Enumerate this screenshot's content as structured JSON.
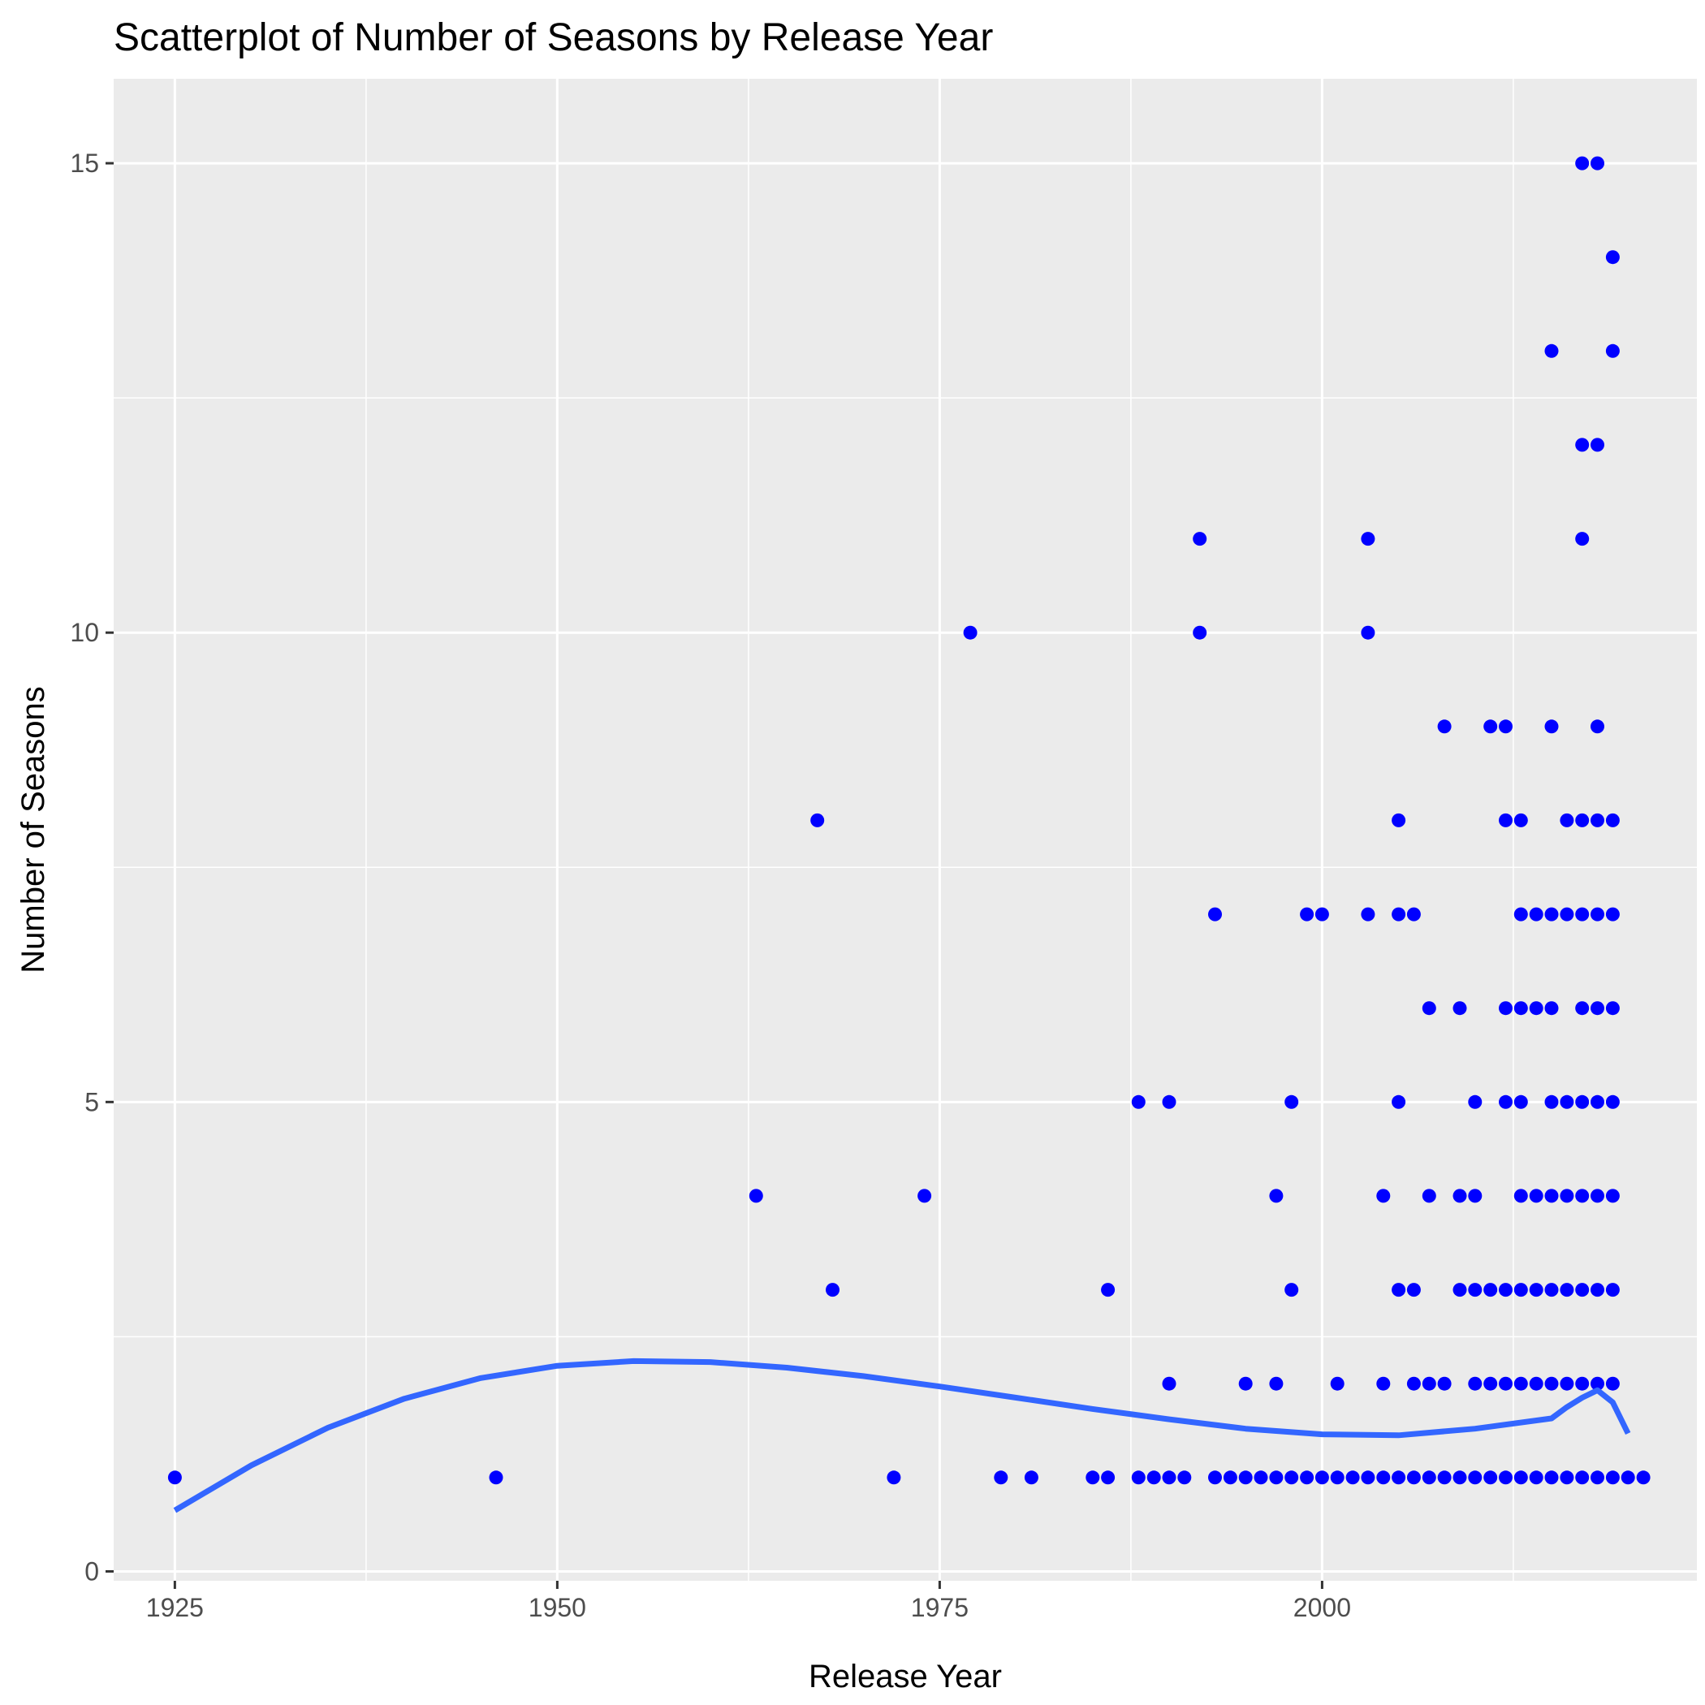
{
  "chart_data": {
    "type": "scatter",
    "title": "Scatterplot of Number of Seasons by Release Year",
    "xlabel": "Release Year",
    "ylabel": "Number of Seasons",
    "xlim": [
      1921,
      2024.5
    ],
    "ylim": [
      -0.1,
      15.9
    ],
    "x_ticks": [
      1925,
      1950,
      1975,
      2000
    ],
    "x_tick_labels": [
      "1925",
      "1950",
      "1975",
      "2000"
    ],
    "y_ticks": [
      0,
      5,
      10,
      15
    ],
    "y_tick_labels": [
      "0",
      "5",
      "10",
      "15"
    ],
    "grid": true,
    "legend": "none",
    "colors": {
      "points": "#0000ff",
      "trend": "#3366ff",
      "panel": "#ebebeb",
      "grid": "#ffffff"
    },
    "points": [
      {
        "x": 1925,
        "y": 1
      },
      {
        "x": 1946,
        "y": 1
      },
      {
        "x": 1963,
        "y": 4
      },
      {
        "x": 1967,
        "y": 8
      },
      {
        "x": 1968,
        "y": 3
      },
      {
        "x": 1972,
        "y": 1
      },
      {
        "x": 1974,
        "y": 4
      },
      {
        "x": 1977,
        "y": 10
      },
      {
        "x": 1979,
        "y": 1
      },
      {
        "x": 1981,
        "y": 1
      },
      {
        "x": 1985,
        "y": 1
      },
      {
        "x": 1986,
        "y": 1
      },
      {
        "x": 1986,
        "y": 3
      },
      {
        "x": 1988,
        "y": 1
      },
      {
        "x": 1988,
        "y": 5
      },
      {
        "x": 1989,
        "y": 1
      },
      {
        "x": 1990,
        "y": 1
      },
      {
        "x": 1990,
        "y": 2
      },
      {
        "x": 1990,
        "y": 5
      },
      {
        "x": 1991,
        "y": 1
      },
      {
        "x": 1992,
        "y": 10
      },
      {
        "x": 1992,
        "y": 11
      },
      {
        "x": 1993,
        "y": 1
      },
      {
        "x": 1993,
        "y": 7
      },
      {
        "x": 1994,
        "y": 1
      },
      {
        "x": 1995,
        "y": 1
      },
      {
        "x": 1995,
        "y": 2
      },
      {
        "x": 1996,
        "y": 1
      },
      {
        "x": 1997,
        "y": 1
      },
      {
        "x": 1997,
        "y": 2
      },
      {
        "x": 1997,
        "y": 4
      },
      {
        "x": 1998,
        "y": 1
      },
      {
        "x": 1998,
        "y": 3
      },
      {
        "x": 1998,
        "y": 5
      },
      {
        "x": 1999,
        "y": 1
      },
      {
        "x": 1999,
        "y": 7
      },
      {
        "x": 2000,
        "y": 1
      },
      {
        "x": 2000,
        "y": 7
      },
      {
        "x": 2001,
        "y": 1
      },
      {
        "x": 2001,
        "y": 2
      },
      {
        "x": 2002,
        "y": 1
      },
      {
        "x": 2003,
        "y": 1
      },
      {
        "x": 2003,
        "y": 7
      },
      {
        "x": 2003,
        "y": 10
      },
      {
        "x": 2003,
        "y": 11
      },
      {
        "x": 2004,
        "y": 1
      },
      {
        "x": 2004,
        "y": 2
      },
      {
        "x": 2004,
        "y": 4
      },
      {
        "x": 2005,
        "y": 1
      },
      {
        "x": 2005,
        "y": 3
      },
      {
        "x": 2005,
        "y": 5
      },
      {
        "x": 2005,
        "y": 7
      },
      {
        "x": 2005,
        "y": 8
      },
      {
        "x": 2006,
        "y": 1
      },
      {
        "x": 2006,
        "y": 2
      },
      {
        "x": 2006,
        "y": 3
      },
      {
        "x": 2006,
        "y": 7
      },
      {
        "x": 2007,
        "y": 1
      },
      {
        "x": 2007,
        "y": 2
      },
      {
        "x": 2007,
        "y": 4
      },
      {
        "x": 2007,
        "y": 6
      },
      {
        "x": 2008,
        "y": 1
      },
      {
        "x": 2008,
        "y": 2
      },
      {
        "x": 2008,
        "y": 9
      },
      {
        "x": 2009,
        "y": 1
      },
      {
        "x": 2009,
        "y": 3
      },
      {
        "x": 2009,
        "y": 4
      },
      {
        "x": 2009,
        "y": 6
      },
      {
        "x": 2010,
        "y": 1
      },
      {
        "x": 2010,
        "y": 2
      },
      {
        "x": 2010,
        "y": 3
      },
      {
        "x": 2010,
        "y": 4
      },
      {
        "x": 2010,
        "y": 5
      },
      {
        "x": 2011,
        "y": 1
      },
      {
        "x": 2011,
        "y": 2
      },
      {
        "x": 2011,
        "y": 3
      },
      {
        "x": 2011,
        "y": 9
      },
      {
        "x": 2012,
        "y": 1
      },
      {
        "x": 2012,
        "y": 2
      },
      {
        "x": 2012,
        "y": 3
      },
      {
        "x": 2012,
        "y": 5
      },
      {
        "x": 2012,
        "y": 6
      },
      {
        "x": 2012,
        "y": 8
      },
      {
        "x": 2012,
        "y": 9
      },
      {
        "x": 2013,
        "y": 1
      },
      {
        "x": 2013,
        "y": 2
      },
      {
        "x": 2013,
        "y": 3
      },
      {
        "x": 2013,
        "y": 4
      },
      {
        "x": 2013,
        "y": 5
      },
      {
        "x": 2013,
        "y": 6
      },
      {
        "x": 2013,
        "y": 7
      },
      {
        "x": 2013,
        "y": 8
      },
      {
        "x": 2014,
        "y": 1
      },
      {
        "x": 2014,
        "y": 2
      },
      {
        "x": 2014,
        "y": 3
      },
      {
        "x": 2014,
        "y": 4
      },
      {
        "x": 2014,
        "y": 6
      },
      {
        "x": 2014,
        "y": 7
      },
      {
        "x": 2015,
        "y": 1
      },
      {
        "x": 2015,
        "y": 2
      },
      {
        "x": 2015,
        "y": 3
      },
      {
        "x": 2015,
        "y": 4
      },
      {
        "x": 2015,
        "y": 5
      },
      {
        "x": 2015,
        "y": 6
      },
      {
        "x": 2015,
        "y": 7
      },
      {
        "x": 2015,
        "y": 9
      },
      {
        "x": 2015,
        "y": 13
      },
      {
        "x": 2016,
        "y": 1
      },
      {
        "x": 2016,
        "y": 2
      },
      {
        "x": 2016,
        "y": 3
      },
      {
        "x": 2016,
        "y": 4
      },
      {
        "x": 2016,
        "y": 5
      },
      {
        "x": 2016,
        "y": 7
      },
      {
        "x": 2016,
        "y": 8
      },
      {
        "x": 2017,
        "y": 1
      },
      {
        "x": 2017,
        "y": 2
      },
      {
        "x": 2017,
        "y": 3
      },
      {
        "x": 2017,
        "y": 4
      },
      {
        "x": 2017,
        "y": 5
      },
      {
        "x": 2017,
        "y": 6
      },
      {
        "x": 2017,
        "y": 7
      },
      {
        "x": 2017,
        "y": 8
      },
      {
        "x": 2017,
        "y": 11
      },
      {
        "x": 2017,
        "y": 12
      },
      {
        "x": 2017,
        "y": 15
      },
      {
        "x": 2018,
        "y": 1
      },
      {
        "x": 2018,
        "y": 2
      },
      {
        "x": 2018,
        "y": 3
      },
      {
        "x": 2018,
        "y": 4
      },
      {
        "x": 2018,
        "y": 5
      },
      {
        "x": 2018,
        "y": 6
      },
      {
        "x": 2018,
        "y": 7
      },
      {
        "x": 2018,
        "y": 8
      },
      {
        "x": 2018,
        "y": 9
      },
      {
        "x": 2018,
        "y": 12
      },
      {
        "x": 2018,
        "y": 15
      },
      {
        "x": 2019,
        "y": 1
      },
      {
        "x": 2019,
        "y": 2
      },
      {
        "x": 2019,
        "y": 3
      },
      {
        "x": 2019,
        "y": 4
      },
      {
        "x": 2019,
        "y": 5
      },
      {
        "x": 2019,
        "y": 6
      },
      {
        "x": 2019,
        "y": 7
      },
      {
        "x": 2019,
        "y": 8
      },
      {
        "x": 2019,
        "y": 13
      },
      {
        "x": 2019,
        "y": 14
      },
      {
        "x": 2020,
        "y": 1
      },
      {
        "x": 2021,
        "y": 1
      }
    ],
    "trend_line": [
      {
        "x": 1925,
        "y": 0.65
      },
      {
        "x": 1930,
        "y": 1.13
      },
      {
        "x": 1935,
        "y": 1.53
      },
      {
        "x": 1940,
        "y": 1.84
      },
      {
        "x": 1945,
        "y": 2.06
      },
      {
        "x": 1950,
        "y": 2.19
      },
      {
        "x": 1955,
        "y": 2.24
      },
      {
        "x": 1960,
        "y": 2.23
      },
      {
        "x": 1965,
        "y": 2.17
      },
      {
        "x": 1970,
        "y": 2.08
      },
      {
        "x": 1975,
        "y": 1.97
      },
      {
        "x": 1980,
        "y": 1.85
      },
      {
        "x": 1985,
        "y": 1.73
      },
      {
        "x": 1990,
        "y": 1.62
      },
      {
        "x": 1995,
        "y": 1.52
      },
      {
        "x": 2000,
        "y": 1.46
      },
      {
        "x": 2005,
        "y": 1.45
      },
      {
        "x": 2010,
        "y": 1.52
      },
      {
        "x": 2015,
        "y": 1.63
      },
      {
        "x": 2016,
        "y": 1.75
      },
      {
        "x": 2017,
        "y": 1.85
      },
      {
        "x": 2018,
        "y": 1.93
      },
      {
        "x": 2019,
        "y": 1.8
      },
      {
        "x": 2020,
        "y": 1.47
      }
    ]
  }
}
